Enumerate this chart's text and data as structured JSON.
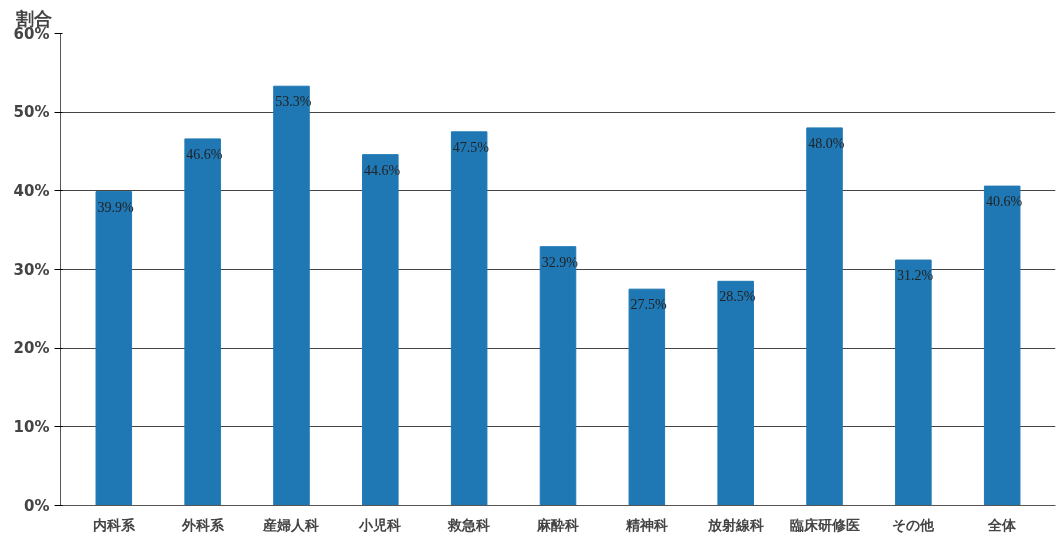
{
  "chart_data": {
    "type": "bar",
    "ylabel": "割合",
    "categories": [
      "内科系",
      "外科系",
      "産婦人科",
      "小児科",
      "救急科",
      "麻酔科",
      "精神科",
      "放射線科",
      "臨床研修医",
      "その他",
      "全体"
    ],
    "values": [
      39.9,
      46.6,
      53.3,
      44.6,
      47.5,
      32.9,
      27.5,
      28.5,
      48.0,
      31.2,
      40.6
    ],
    "value_labels": [
      "39.9%",
      "46.6%",
      "53.3%",
      "44.6%",
      "47.5%",
      "32.9%",
      "27.5%",
      "28.5%",
      "48.0%",
      "31.2%",
      "40.6%"
    ],
    "color": "#1f78b4",
    "ylim": [
      0,
      60
    ],
    "yticks": [
      {
        "value": 0,
        "label": "0%"
      },
      {
        "value": 10,
        "label": "10%"
      },
      {
        "value": 20,
        "label": "20%"
      },
      {
        "value": 30,
        "label": "30%"
      },
      {
        "value": 40,
        "label": "40%"
      },
      {
        "value": 50,
        "label": "50%"
      },
      {
        "value": 60,
        "label": "60%"
      }
    ],
    "grid": "y"
  }
}
